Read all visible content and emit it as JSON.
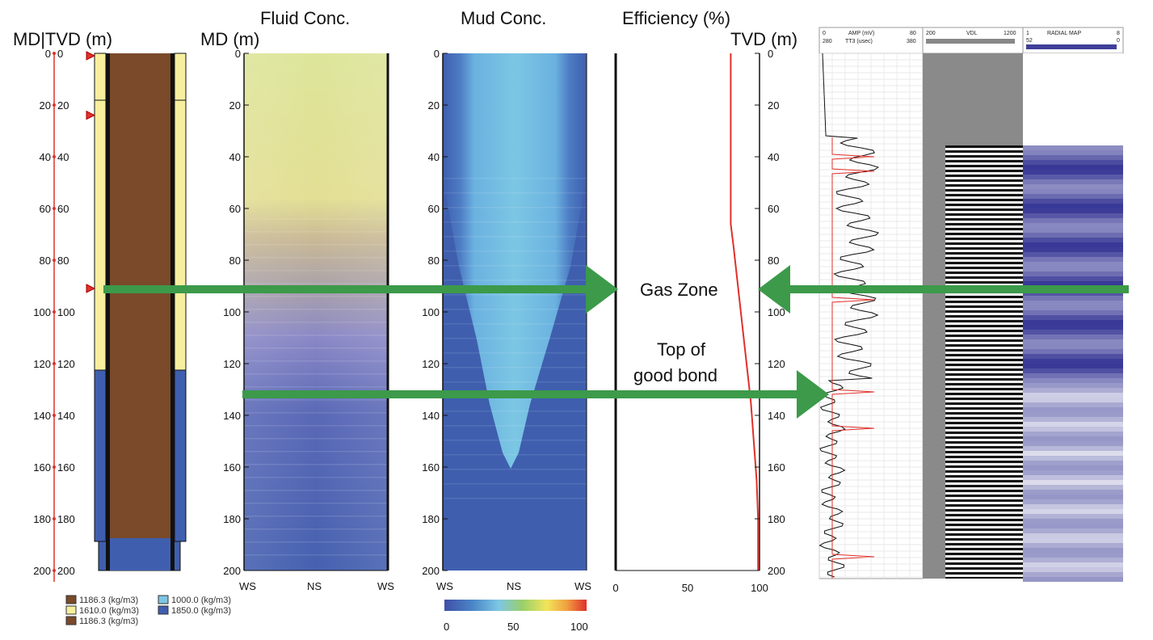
{
  "headers": {
    "md_tvd": "MD|TVD (m)",
    "md": "MD (m)",
    "fluid": "Fluid Conc.",
    "mud": "Mud Conc.",
    "efficiency": "Efficiency (%)",
    "tvd": "TVD (m)"
  },
  "depth_ticks": [
    "0",
    "20",
    "40",
    "60",
    "80",
    "100",
    "120",
    "140",
    "160",
    "180",
    "200"
  ],
  "depth_values": [
    0,
    20,
    40,
    60,
    80,
    100,
    120,
    140,
    160,
    180,
    200
  ],
  "x_ticks_ws_ns": [
    "WS",
    "NS",
    "WS"
  ],
  "efficiency_ticks": [
    "0",
    "50",
    "100"
  ],
  "colorbar_ticks": [
    "0",
    "50",
    "100"
  ],
  "annotations": {
    "gas_zone": "Gas Zone",
    "top_line1": "Top of",
    "top_line2": "good bond"
  },
  "legend": [
    {
      "label": "1186.3 (kg/m3)",
      "color": "#7a4a2a"
    },
    {
      "label": "1610.0 (kg/m3)",
      "color": "#f7ef9e"
    },
    {
      "label": "1186.3 (kg/m3)",
      "color": "#7a4a2a"
    },
    {
      "label": "1000.0 (kg/m3)",
      "color": "#7cc6e4"
    },
    {
      "label": "1850.0 (kg/m3)",
      "color": "#3f5fae"
    }
  ],
  "log_header": {
    "amp": [
      "0",
      "AMP (mV)",
      "80"
    ],
    "tt": [
      "280",
      "TT3 (usec)",
      "380"
    ],
    "vdl": [
      "200",
      "VDL",
      "1200"
    ],
    "radial": [
      "1",
      "RADIAL MAP",
      "8"
    ],
    "radial_sub": [
      "52",
      "0"
    ]
  },
  "colors": {
    "brown": "#7a4a2a",
    "yellow": "#f7ef9e",
    "blue": "#3f5fae",
    "green_arrow": "#3c9a4a",
    "red": "#e0302a",
    "light_blue": "#7cc6e4"
  },
  "chart_data": {
    "type": "line",
    "x": [
      80,
      80,
      80,
      80,
      80,
      80,
      80,
      80,
      80,
      80,
      82,
      84,
      86,
      88,
      90,
      92,
      94,
      96,
      98,
      99,
      99
    ],
    "y": [
      0,
      10,
      20,
      30,
      40,
      50,
      60,
      62,
      64,
      66,
      75,
      85,
      95,
      105,
      115,
      125,
      135,
      150,
      165,
      180,
      200
    ],
    "xlim": [
      0,
      100
    ],
    "ylim": [
      200,
      0
    ],
    "markers_depth": [
      0,
      23,
      90
    ],
    "casing_change_depth": 124,
    "gas_zone_depth": 91,
    "top_good_bond_depth": 131
  }
}
